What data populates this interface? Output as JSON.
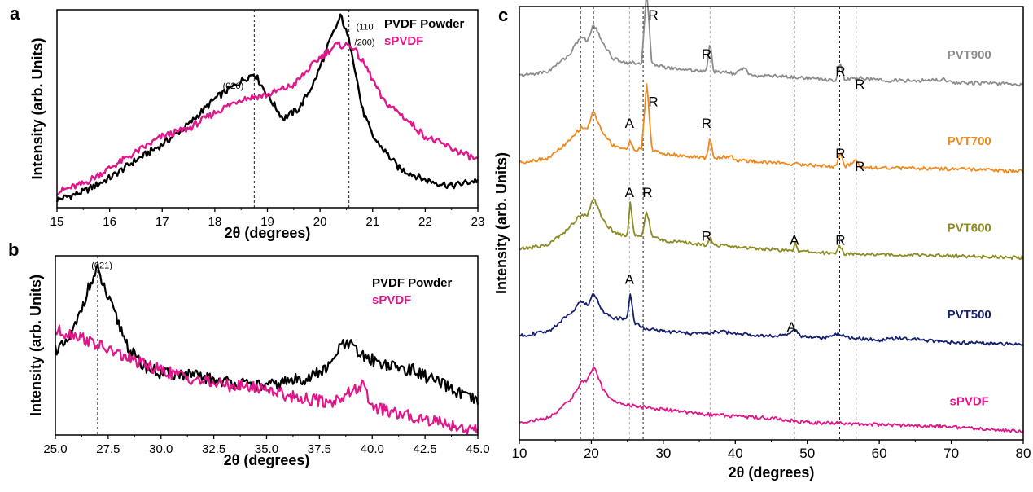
{
  "chart_data": [
    {
      "id": "a",
      "panel_label": "a",
      "type": "line",
      "xlabel": "2θ (degrees)",
      "ylabel": "Intensity (arb. Units)",
      "xlim": [
        15,
        23
      ],
      "ylim": [
        0,
        1
      ],
      "xticks": [
        15,
        16,
        17,
        18,
        19,
        20,
        21,
        22,
        23
      ],
      "xtick_labels": [
        "15",
        "16",
        "17",
        "18",
        "19",
        "20",
        "21",
        "22",
        "23"
      ],
      "grid": false,
      "legend": "top-right",
      "ref_lines": [
        18.75,
        20.55
      ],
      "annotations": [
        {
          "text": "(020)",
          "x": 18.35,
          "y": 0.6
        },
        {
          "text": "(110",
          "x": 20.85,
          "y": 0.9
        },
        {
          "text": "/200)",
          "x": 20.85,
          "y": 0.82
        }
      ],
      "series": [
        {
          "name": "PVDF Powder",
          "color": "#000000",
          "x": [
            15,
            15.5,
            16,
            16.5,
            17,
            17.5,
            18,
            18.5,
            18.75,
            19,
            19.3,
            19.6,
            19.9,
            20.2,
            20.4,
            20.6,
            20.8,
            21,
            21.5,
            22,
            22.5,
            23
          ],
          "y": [
            0.04,
            0.08,
            0.15,
            0.24,
            0.32,
            0.42,
            0.55,
            0.64,
            0.68,
            0.57,
            0.45,
            0.5,
            0.64,
            0.85,
            0.97,
            0.8,
            0.5,
            0.36,
            0.2,
            0.14,
            0.11,
            0.14
          ]
        },
        {
          "name": "sPVDF",
          "color": "#e0168a",
          "x": [
            15,
            15.5,
            16,
            16.5,
            17,
            17.5,
            18,
            18.5,
            19,
            19.5,
            20,
            20.3,
            20.6,
            20.9,
            21.2,
            21.5,
            22,
            22.5,
            23
          ],
          "y": [
            0.08,
            0.12,
            0.2,
            0.28,
            0.36,
            0.4,
            0.48,
            0.55,
            0.57,
            0.62,
            0.76,
            0.82,
            0.82,
            0.7,
            0.54,
            0.48,
            0.36,
            0.3,
            0.24
          ]
        }
      ]
    },
    {
      "id": "b",
      "panel_label": "b",
      "type": "line",
      "xlabel": "2θ (degrees)",
      "ylabel": "Intensity (arb. Units)",
      "xlim": [
        25,
        45
      ],
      "ylim": [
        0,
        1
      ],
      "xticks": [
        25,
        27.5,
        30,
        32.5,
        35,
        37.5,
        40,
        42.5,
        45
      ],
      "xtick_labels": [
        "25.0",
        "27.5",
        "30.0",
        "32.5",
        "35.0",
        "37.5",
        "40.0",
        "42.5",
        "45.0"
      ],
      "grid": false,
      "legend": "top-right",
      "ref_lines": [
        27.0
      ],
      "annotations": [
        {
          "text": "(021)",
          "x": 27.2,
          "y": 0.93
        }
      ],
      "series": [
        {
          "name": "PVDF Powder",
          "color": "#000000",
          "x": [
            25,
            25.5,
            26,
            26.5,
            27,
            27.5,
            28,
            28.5,
            29,
            30,
            31,
            32,
            33,
            34,
            35,
            36,
            37,
            38,
            38.5,
            39,
            39.5,
            40,
            41,
            42,
            43,
            44,
            45
          ],
          "y": [
            0.48,
            0.5,
            0.62,
            0.8,
            0.92,
            0.76,
            0.62,
            0.48,
            0.4,
            0.34,
            0.34,
            0.32,
            0.3,
            0.28,
            0.27,
            0.3,
            0.32,
            0.38,
            0.5,
            0.5,
            0.44,
            0.42,
            0.38,
            0.36,
            0.3,
            0.24,
            0.18
          ]
        },
        {
          "name": "sPVDF",
          "color": "#e0168a",
          "x": [
            25,
            26,
            27,
            28,
            29,
            30,
            31,
            32,
            33,
            34,
            35,
            36,
            37,
            38,
            39,
            39.5,
            40,
            41,
            42,
            43,
            44,
            45
          ],
          "y": [
            0.58,
            0.56,
            0.5,
            0.45,
            0.4,
            0.36,
            0.33,
            0.3,
            0.28,
            0.27,
            0.26,
            0.22,
            0.2,
            0.18,
            0.24,
            0.28,
            0.16,
            0.12,
            0.1,
            0.08,
            0.05,
            0.02
          ]
        }
      ]
    },
    {
      "id": "c",
      "panel_label": "c",
      "type": "line",
      "xlabel": "2θ (degrees)",
      "ylabel": "Intensity (arb. Units)",
      "xlim": [
        10,
        80
      ],
      "ylim": [
        0,
        1
      ],
      "xticks": [
        10,
        20,
        30,
        40,
        50,
        60,
        70,
        80
      ],
      "xtick_labels": [
        "10",
        "20",
        "30",
        "40",
        "50",
        "60",
        "70",
        "80"
      ],
      "grid": false,
      "legend": "right",
      "ref_lines_dark": [
        18.5,
        20.3,
        27.2,
        48.2,
        54.5
      ],
      "ref_lines_light": [
        25.3,
        36.5,
        56.8
      ],
      "series": [
        {
          "name": "PVT900",
          "color": "#8c8c8c",
          "offset": 0.82,
          "x": [
            10,
            14,
            17,
            18.5,
            19.5,
            20.3,
            21.5,
            23,
            25,
            27,
            27.7,
            28.4,
            30,
            33,
            36,
            36.5,
            37,
            40,
            41.3,
            42,
            45,
            50,
            54,
            54.6,
            55.2,
            57,
            60,
            65,
            69,
            70,
            75,
            80
          ],
          "y": [
            0.02,
            0.03,
            0.07,
            0.11,
            0.1,
            0.14,
            0.1,
            0.06,
            0.05,
            0.05,
            0.22,
            0.05,
            0.04,
            0.035,
            0.03,
            0.1,
            0.03,
            0.025,
            0.04,
            0.02,
            0.02,
            0.015,
            0.01,
            0.05,
            0.01,
            0.015,
            0.01,
            0.008,
            0.012,
            0.005,
            0.003,
            0.0
          ]
        },
        {
          "name": "PVT700",
          "color": "#f08a1e",
          "offset": 0.62,
          "x": [
            10,
            14,
            17,
            18.5,
            19.5,
            20.3,
            21.5,
            23,
            25,
            25.4,
            26,
            27,
            27.7,
            28.4,
            30,
            33,
            36,
            36.5,
            37,
            39.5,
            40,
            45,
            50,
            54,
            54.6,
            55.2,
            56.8,
            57.4,
            60,
            70,
            80
          ],
          "y": [
            0.02,
            0.03,
            0.07,
            0.1,
            0.1,
            0.14,
            0.09,
            0.06,
            0.05,
            0.07,
            0.05,
            0.05,
            0.21,
            0.05,
            0.04,
            0.035,
            0.03,
            0.08,
            0.03,
            0.035,
            0.025,
            0.02,
            0.015,
            0.01,
            0.045,
            0.01,
            0.025,
            0.01,
            0.008,
            0.005,
            0.0
          ]
        },
        {
          "name": "PVT600",
          "color": "#8c8a22",
          "offset": 0.42,
          "x": [
            10,
            14,
            17,
            18.5,
            19.5,
            20.3,
            21.5,
            23,
            25,
            25.4,
            26,
            27,
            27.7,
            28.4,
            30,
            33,
            36,
            36.5,
            37,
            40,
            45,
            48,
            48.3,
            48.8,
            52,
            54,
            54.5,
            55.1,
            60,
            70,
            80
          ],
          "y": [
            0.02,
            0.03,
            0.07,
            0.1,
            0.1,
            0.14,
            0.09,
            0.06,
            0.05,
            0.13,
            0.05,
            0.05,
            0.11,
            0.05,
            0.04,
            0.035,
            0.03,
            0.05,
            0.03,
            0.025,
            0.02,
            0.015,
            0.04,
            0.015,
            0.012,
            0.01,
            0.03,
            0.01,
            0.008,
            0.005,
            0.0
          ]
        },
        {
          "name": "PVT500",
          "color": "#14206e",
          "offset": 0.22,
          "x": [
            10,
            14,
            17,
            18.5,
            19.5,
            20.3,
            21.5,
            23,
            25,
            25.4,
            26,
            27,
            30,
            35,
            38,
            40,
            45,
            47,
            48.2,
            49,
            52,
            54.5,
            56,
            60,
            63,
            70,
            80
          ],
          "y": [
            0.02,
            0.03,
            0.07,
            0.1,
            0.09,
            0.12,
            0.08,
            0.06,
            0.06,
            0.12,
            0.05,
            0.04,
            0.03,
            0.025,
            0.03,
            0.025,
            0.02,
            0.02,
            0.035,
            0.02,
            0.015,
            0.025,
            0.015,
            0.01,
            0.015,
            0.005,
            0.0
          ]
        },
        {
          "name": "sPVDF",
          "color": "#e0168a",
          "offset": 0.02,
          "x": [
            10,
            14,
            17,
            18.5,
            19.5,
            20.3,
            21.5,
            23,
            25,
            30,
            35,
            40,
            45,
            50,
            60,
            70,
            80
          ],
          "y": [
            0.02,
            0.03,
            0.07,
            0.11,
            0.12,
            0.15,
            0.1,
            0.07,
            0.06,
            0.05,
            0.04,
            0.035,
            0.03,
            0.02,
            0.015,
            0.01,
            0.0
          ]
        }
      ],
      "peak_labels": [
        {
          "text": "R",
          "x": 28.6,
          "y": 0.97
        },
        {
          "text": "R",
          "x": 36.0,
          "y": 0.88
        },
        {
          "text": "R",
          "x": 54.6,
          "y": 0.84
        },
        {
          "text": "R",
          "x": 57.3,
          "y": 0.81
        },
        {
          "text": "A",
          "x": 25.3,
          "y": 0.72
        },
        {
          "text": "R",
          "x": 28.6,
          "y": 0.77
        },
        {
          "text": "R",
          "x": 36.0,
          "y": 0.72
        },
        {
          "text": "R",
          "x": 54.6,
          "y": 0.65
        },
        {
          "text": "R",
          "x": 57.3,
          "y": 0.62
        },
        {
          "text": "A",
          "x": 25.3,
          "y": 0.56
        },
        {
          "text": "R",
          "x": 27.8,
          "y": 0.56
        },
        {
          "text": "R",
          "x": 36.0,
          "y": 0.46
        },
        {
          "text": "A",
          "x": 48.2,
          "y": 0.45
        },
        {
          "text": "R",
          "x": 54.6,
          "y": 0.45
        },
        {
          "text": "A",
          "x": 25.3,
          "y": 0.36
        },
        {
          "text": "A",
          "x": 47.8,
          "y": 0.25
        }
      ]
    }
  ]
}
